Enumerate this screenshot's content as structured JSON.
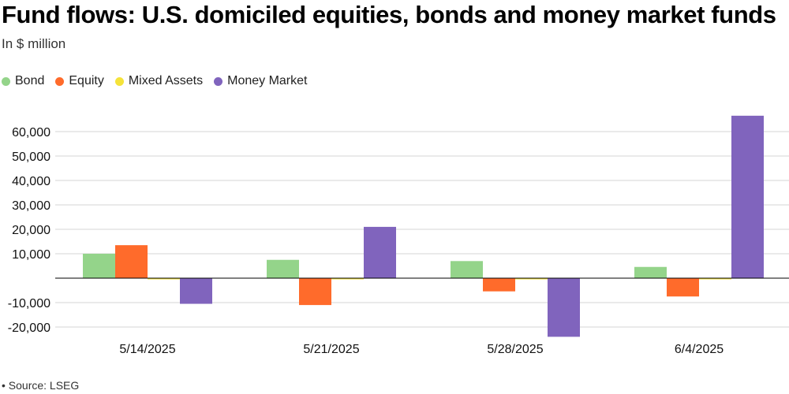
{
  "header": {
    "title": "Fund flows: U.S. domiciled equities, bonds and money market funds",
    "subtitle": "In $ million"
  },
  "footer": {
    "source": "• Source: LSEG"
  },
  "chart_data": {
    "type": "bar",
    "title": "Fund flows: U.S. domiciled equities, bonds and money market funds",
    "subtitle": "In $ million",
    "xlabel": "",
    "ylabel": "",
    "categories": [
      "5/14/2025",
      "5/21/2025",
      "5/28/2025",
      "6/4/2025"
    ],
    "ylim": [
      -24000,
      68000
    ],
    "yticks": [
      -20000,
      -10000,
      10000,
      20000,
      30000,
      40000,
      50000,
      60000
    ],
    "ytick_labels": [
      "-20,000",
      "-10,000",
      "10,000",
      "20,000",
      "30,000",
      "40,000",
      "50,000",
      "60,000"
    ],
    "grid": true,
    "legend_position": "top-left",
    "series": [
      {
        "name": "Bond",
        "color": "#94d48a",
        "values": [
          10000,
          7500,
          7000,
          4600
        ]
      },
      {
        "name": "Equity",
        "color": "#ff6b2b",
        "values": [
          13500,
          -11000,
          -5400,
          -7500
        ]
      },
      {
        "name": "Mixed Assets",
        "color": "#f5e33a",
        "values": [
          0,
          0,
          -300,
          -200
        ]
      },
      {
        "name": "Money Market",
        "color": "#8064bd",
        "values": [
          -10500,
          21000,
          -24000,
          66500
        ]
      }
    ]
  }
}
